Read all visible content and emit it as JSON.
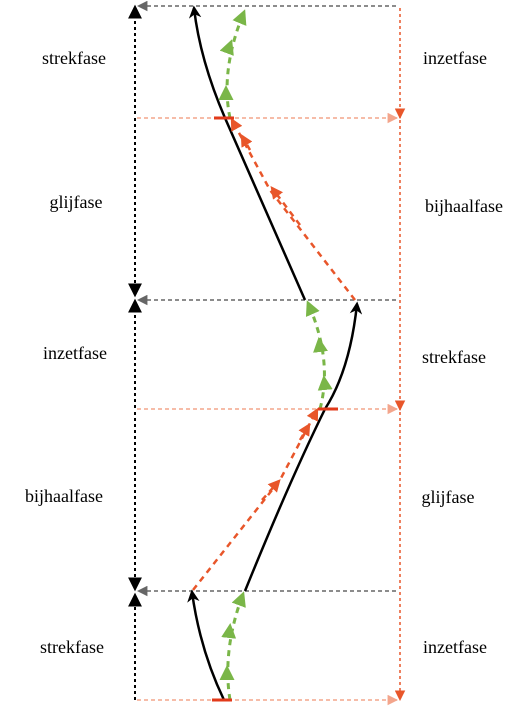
{
  "left_phases": [
    "strekfase",
    "glijfase",
    "inzetfase",
    "bijhaalfase",
    "strekfase"
  ],
  "right_phases": [
    "inzetfase",
    "bijhaalfase",
    "strekfase",
    "glijfase",
    "inzetfase"
  ],
  "colors": {
    "black_stroke": "#000000",
    "green_stroke": "#7ab648",
    "orange_stroke": "#e8562a",
    "light_orange_guide": "#f3a58c",
    "grey_guide": "#666666",
    "marker_red": "#e23a1a"
  }
}
